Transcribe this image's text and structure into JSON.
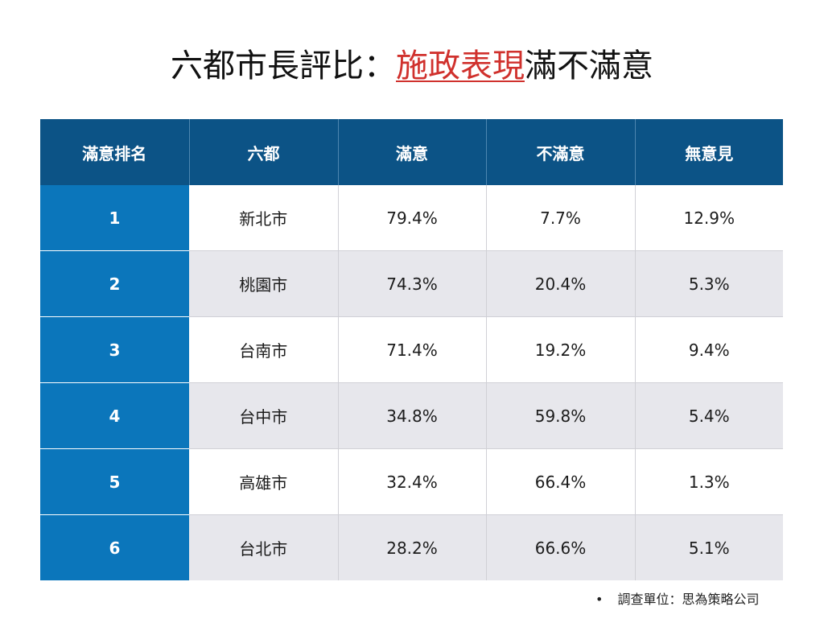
{
  "title": {
    "prefix": "六都市長評比：",
    "highlight": "施政表現",
    "suffix": "滿不滿意"
  },
  "colors": {
    "header_bg": "#0c5386",
    "rank_bg": "#0b76bb",
    "highlight": "#d0312d",
    "stripe": "#e7e7ec"
  },
  "table": {
    "headers": [
      "滿意排名",
      "六都",
      "滿意",
      "不滿意",
      "無意見"
    ],
    "rows": [
      {
        "rank": "1",
        "city": "新北市",
        "satisfied": "79.4%",
        "dissatisfied": "7.7%",
        "no_opinion": "12.9%"
      },
      {
        "rank": "2",
        "city": "桃園市",
        "satisfied": "74.3%",
        "dissatisfied": "20.4%",
        "no_opinion": "5.3%"
      },
      {
        "rank": "3",
        "city": "台南市",
        "satisfied": "71.4%",
        "dissatisfied": "19.2%",
        "no_opinion": "9.4%"
      },
      {
        "rank": "4",
        "city": "台中市",
        "satisfied": "34.8%",
        "dissatisfied": "59.8%",
        "no_opinion": "5.4%"
      },
      {
        "rank": "5",
        "city": "高雄市",
        "satisfied": "32.4%",
        "dissatisfied": "66.4%",
        "no_opinion": "1.3%"
      },
      {
        "rank": "6",
        "city": "台北市",
        "satisfied": "28.2%",
        "dissatisfied": "66.6%",
        "no_opinion": "5.1%"
      }
    ]
  },
  "footer": {
    "bullet": "•",
    "source": "調查單位：思為策略公司"
  }
}
